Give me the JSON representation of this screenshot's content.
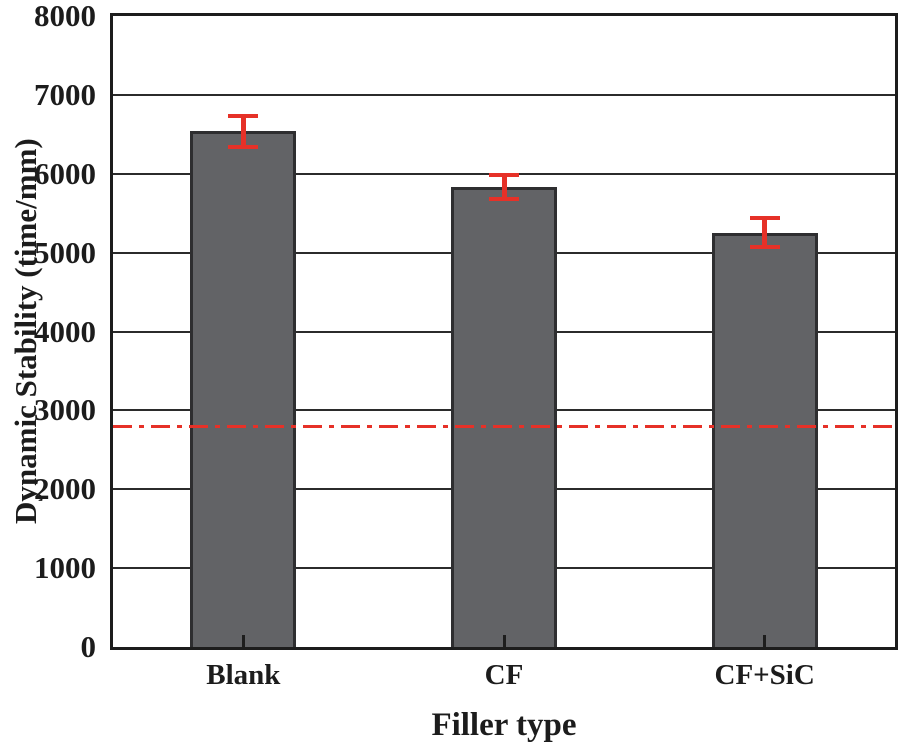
{
  "chart_data": {
    "type": "bar",
    "title": "",
    "xlabel": "Filler type",
    "ylabel": "Dynamic Stability (time/mm)",
    "categories": [
      "Blank",
      "CF",
      "CF+SiC"
    ],
    "values": [
      6540,
      5830,
      5250
    ],
    "errors": [
      220,
      180,
      210
    ],
    "ylim": [
      0,
      8000
    ],
    "yticks": [
      0,
      1000,
      2000,
      3000,
      4000,
      5000,
      6000,
      7000,
      8000
    ],
    "grid": "horizontal-major",
    "legend": "none",
    "reference_line": {
      "value": 2800,
      "style": "dash-dot"
    },
    "colors": {
      "bar_fill": "#626366",
      "bar_edge": "#2e2e30",
      "error_bar": "#e63128",
      "reference_line": "#e63128",
      "axis": "#1d1d1d",
      "gridline": "#2b2b2b",
      "text": "#1c1c1c",
      "background": "#ffffff"
    }
  }
}
